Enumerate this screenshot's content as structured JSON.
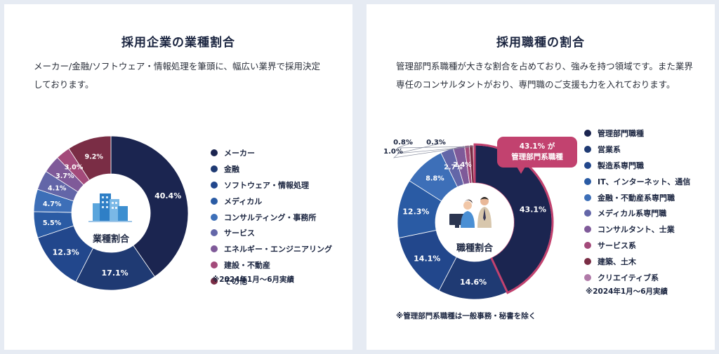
{
  "left_panel": {
    "title": "採用企業の業種割合",
    "description": "メーカー/金融/ソフトウェア・情報処理を筆頭に、幅広い業界で採用決定しております。",
    "center_label": "業種割合",
    "footnote": "※2024年1月～6月実績"
  },
  "right_panel": {
    "title": "採用職種の割合",
    "description": "管理部門系職種が大きな割合を占めており、強みを持つ領域です。また業界専任のコンサルタントがおり、専門職のご支援も力を入れております。",
    "center_label": "職種割合",
    "callout_line1": "43.1% が",
    "callout_line2": "管理部門系職種",
    "footnote": "※2024年1月～6月実績",
    "footnote2": "※管理部門系職種は一般事務・秘書を除く"
  },
  "chart_data": [
    {
      "type": "pie",
      "title": "採用企業の業種割合",
      "categories": [
        "メーカー",
        "金融",
        "ソフトウェア・情報処理",
        "メディカル",
        "コンサルティング・事務所",
        "サービス",
        "エネルギー・エンジニアリング",
        "建設・不動産",
        "その他"
      ],
      "values": [
        40.4,
        17.1,
        12.3,
        5.5,
        4.7,
        4.1,
        3.7,
        3.0,
        9.2
      ],
      "value_labels": [
        "40.4%",
        "17.1%",
        "12.3%",
        "5.5%",
        "4.7%",
        "4.1%",
        "3.7%",
        "3.0%",
        "9.2%"
      ],
      "colors": [
        "#1b2550",
        "#1f3a73",
        "#22478c",
        "#2a5ba4",
        "#3d6fb8",
        "#6366a8",
        "#7f5a99",
        "#a34a7a",
        "#7a2d45"
      ],
      "legend_position": "right"
    },
    {
      "type": "pie",
      "title": "採用職種の割合",
      "categories": [
        "管理部門職種",
        "営業系",
        "製造系専門職",
        "IT、インターネット、通信",
        "金融・不動産系専門職",
        "メディカル系専門職",
        "コンサルタント、士業",
        "サービス系",
        "建築、土木",
        "クリエイティブ系"
      ],
      "values": [
        43.1,
        14.6,
        14.1,
        12.3,
        8.8,
        2.7,
        2.4,
        1.0,
        0.8,
        0.3
      ],
      "value_labels": [
        "43.1%",
        "14.6%",
        "14.1%",
        "12.3%",
        "8.8%",
        "2.7%",
        "2.4%",
        "1.0%",
        "0.8%",
        "0.3%"
      ],
      "colors": [
        "#1b2550",
        "#1f3a73",
        "#22478c",
        "#2a5ba4",
        "#3d6fb8",
        "#6366a8",
        "#7f5a99",
        "#a34a7a",
        "#7a2d45",
        "#b07aa8"
      ],
      "highlight_index": 0,
      "highlight_color": "#c2426f",
      "legend_position": "right"
    }
  ]
}
